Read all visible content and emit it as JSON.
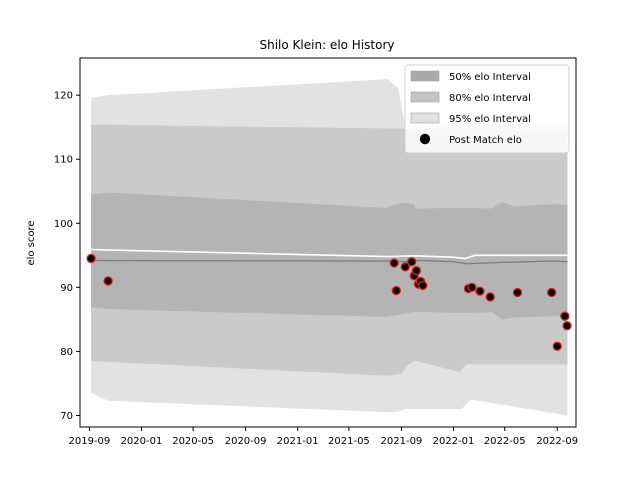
{
  "chart_data": {
    "type": "line",
    "title": "Shilo Klein: elo History",
    "xlabel": "",
    "ylabel": "elo score",
    "x_tick_labels": [
      "2019-09",
      "2020-01",
      "2020-05",
      "2020-09",
      "2021-01",
      "2021-05",
      "2021-09",
      "2022-01",
      "2022-05",
      "2022-09"
    ],
    "x_ticks": [
      "2019-09-01",
      "2020-01-01",
      "2020-05-01",
      "2020-09-01",
      "2021-01-01",
      "2021-05-01",
      "2021-09-01",
      "2022-01-01",
      "2022-05-01",
      "2022-09-01"
    ],
    "xlim": [
      "2019-08-10",
      "2022-10-15"
    ],
    "y_ticks": [
      70,
      80,
      90,
      100,
      110,
      120
    ],
    "ylim": [
      68.2,
      125.8
    ],
    "grid": false,
    "legend_position": "top-right",
    "legend": [
      {
        "label": "50% elo Interval",
        "kind": "band",
        "color": "#aaaaaa"
      },
      {
        "label": "80% elo Interval",
        "kind": "band",
        "color": "#c4c4c4"
      },
      {
        "label": "95% elo Interval",
        "kind": "band",
        "color": "#e0e0e0"
      },
      {
        "label": "Post Match elo",
        "kind": "marker",
        "color": "#000000"
      }
    ],
    "series": [
      {
        "name": "95% elo Interval",
        "kind": "band",
        "color": "#e2e2e2",
        "x": [
          "2019-09-05",
          "2019-10-15",
          "2021-08-01",
          "2021-08-25",
          "2021-09-10",
          "2021-09-25",
          "2021-12-25",
          "2022-01-20",
          "2022-02-10",
          "2022-09-25"
        ],
        "lower": [
          73.5,
          72.3,
          70.5,
          70.6,
          71.0,
          71.0,
          71.0,
          71.0,
          72.5,
          70.0
        ],
        "upper": [
          119.6,
          120.0,
          122.5,
          121.0,
          115.0,
          115.0,
          115.2,
          115.3,
          115.5,
          115.6
        ]
      },
      {
        "name": "80% elo Interval",
        "kind": "band",
        "color": "#cacaca",
        "x": [
          "2019-09-05",
          "2021-08-01",
          "2021-09-01",
          "2021-09-15",
          "2021-10-01",
          "2021-10-05",
          "2022-01-15",
          "2022-02-01",
          "2022-09-25"
        ],
        "lower": [
          78.5,
          76.2,
          76.5,
          77.8,
          78.5,
          78.5,
          76.8,
          78.0,
          78.0
        ],
        "upper": [
          115.4,
          114.8,
          114.8,
          114.6,
          114.7,
          114.7,
          114.8,
          114.8,
          114.6
        ]
      },
      {
        "name": "50% elo Interval",
        "kind": "band",
        "color": "#b4b4b4",
        "x": [
          "2019-09-05",
          "2019-10-15",
          "2021-07-25",
          "2021-09-01",
          "2021-10-01",
          "2021-10-05",
          "2022-01-15",
          "2022-04-01",
          "2022-04-25",
          "2022-05-25",
          "2022-08-25",
          "2022-09-25"
        ],
        "lower": [
          86.9,
          86.6,
          85.4,
          85.8,
          86.2,
          86.2,
          86.0,
          86.1,
          85.0,
          85.3,
          85.5,
          85.4
        ],
        "upper": [
          104.5,
          104.8,
          102.4,
          103.2,
          103.0,
          102.3,
          102.4,
          102.3,
          103.3,
          102.6,
          103.0,
          102.8
        ]
      },
      {
        "name": "mean",
        "kind": "line",
        "color": "#7f7f7f",
        "x": [
          "2019-09-05",
          "2021-08-01",
          "2021-09-20",
          "2021-10-10",
          "2022-01-01",
          "2022-02-01",
          "2022-05-01",
          "2022-08-20",
          "2022-09-25"
        ],
        "y": [
          94.2,
          94.1,
          94.0,
          94.2,
          94.0,
          93.7,
          93.9,
          94.1,
          94.0
        ]
      },
      {
        "name": "upper-mean",
        "kind": "line",
        "color": "#ffffff",
        "x": [
          "2019-09-05",
          "2021-08-01",
          "2021-09-20",
          "2021-10-10",
          "2022-01-01",
          "2022-01-28",
          "2022-02-20",
          "2022-09-25"
        ],
        "y": [
          95.9,
          94.8,
          94.9,
          94.9,
          94.7,
          94.5,
          95.0,
          95.0
        ]
      },
      {
        "name": "Post Match elo",
        "kind": "scatter",
        "color": "#000000",
        "edge": "#dd1c1c",
        "points": [
          {
            "x": "2019-09-05",
            "y": 94.5
          },
          {
            "x": "2019-10-15",
            "y": 91.0
          },
          {
            "x": "2021-08-15",
            "y": 93.8
          },
          {
            "x": "2021-08-20",
            "y": 89.5
          },
          {
            "x": "2021-09-10",
            "y": 93.2
          },
          {
            "x": "2021-09-25",
            "y": 94.0
          },
          {
            "x": "2021-10-01",
            "y": 91.8
          },
          {
            "x": "2021-10-06",
            "y": 92.6
          },
          {
            "x": "2021-10-11",
            "y": 90.5
          },
          {
            "x": "2021-10-16",
            "y": 90.9
          },
          {
            "x": "2021-10-21",
            "y": 90.3
          },
          {
            "x": "2022-02-05",
            "y": 89.8
          },
          {
            "x": "2022-02-13",
            "y": 90.0
          },
          {
            "x": "2022-03-04",
            "y": 89.4
          },
          {
            "x": "2022-03-28",
            "y": 88.5
          },
          {
            "x": "2022-05-31",
            "y": 89.2
          },
          {
            "x": "2022-08-19",
            "y": 89.2
          },
          {
            "x": "2022-09-01",
            "y": 80.8
          },
          {
            "x": "2022-09-19",
            "y": 85.5
          },
          {
            "x": "2022-09-24",
            "y": 84.0
          }
        ]
      }
    ]
  }
}
